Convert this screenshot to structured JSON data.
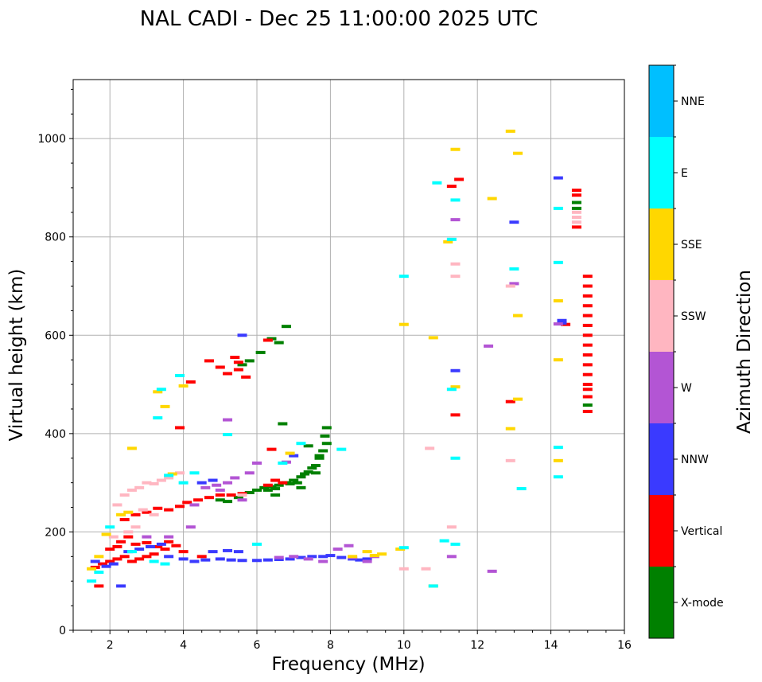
{
  "chart_data": {
    "type": "scatter",
    "title": "NAL CADI - Dec 25 11:00:00 2025 UTC",
    "xlabel": "Frequency (MHz)",
    "ylabel": "Virtual height (km)",
    "xlim": [
      1,
      16
    ],
    "ylim": [
      0,
      1120
    ],
    "xticks": [
      2,
      4,
      6,
      8,
      10,
      12,
      14,
      16
    ],
    "yticks": [
      0,
      200,
      400,
      600,
      800,
      1000
    ],
    "grid": true,
    "colorbar": {
      "label": "Azimuth Direction",
      "categories": [
        "X-mode",
        "Vertical",
        "NNW",
        "W",
        "SSW",
        "SSE",
        "E",
        "NNE"
      ],
      "colors": [
        "#008000",
        "#ff0000",
        "#3a3aff",
        "#b355d4",
        "#ffb6c1",
        "#ffd700",
        "#00ffff",
        "#00bfff"
      ]
    },
    "series": [
      {
        "name": "X-mode",
        "points": [
          [
            5.2,
            262
          ],
          [
            5.5,
            270
          ],
          [
            5.8,
            280
          ],
          [
            6.0,
            285
          ],
          [
            6.2,
            290
          ],
          [
            6.4,
            292
          ],
          [
            6.6,
            295
          ],
          [
            6.8,
            300
          ],
          [
            7.0,
            305
          ],
          [
            7.2,
            312
          ],
          [
            7.4,
            322
          ],
          [
            7.6,
            335
          ],
          [
            7.7,
            350
          ],
          [
            7.8,
            365
          ],
          [
            7.9,
            380
          ],
          [
            7.85,
            395
          ],
          [
            7.9,
            412
          ],
          [
            7.5,
            330
          ],
          [
            7.3,
            318
          ],
          [
            6.9,
            298
          ],
          [
            6.5,
            288
          ],
          [
            6.3,
            285
          ],
          [
            6.5,
            275
          ],
          [
            7.2,
            290
          ],
          [
            7.6,
            320
          ],
          [
            6.7,
            420
          ],
          [
            6.8,
            618
          ],
          [
            6.6,
            585
          ],
          [
            6.4,
            593
          ],
          [
            6.1,
            565
          ],
          [
            5.8,
            548
          ],
          [
            5.6,
            540
          ],
          [
            5.0,
            265
          ],
          [
            7.4,
            375
          ],
          [
            7.7,
            355
          ],
          [
            7.1,
            300
          ],
          [
            15.0,
            458
          ],
          [
            14.7,
            870
          ],
          [
            14.7,
            858
          ]
        ]
      },
      {
        "name": "Vertical",
        "points": [
          [
            1.6,
            128
          ],
          [
            1.8,
            135
          ],
          [
            2.0,
            140
          ],
          [
            2.2,
            145
          ],
          [
            2.4,
            150
          ],
          [
            2.6,
            140
          ],
          [
            2.8,
            145
          ],
          [
            3.0,
            150
          ],
          [
            3.2,
            155
          ],
          [
            2.3,
            180
          ],
          [
            2.5,
            190
          ],
          [
            2.7,
            175
          ],
          [
            3.0,
            178
          ],
          [
            3.3,
            170
          ],
          [
            3.5,
            165
          ],
          [
            3.8,
            172
          ],
          [
            4.0,
            160
          ],
          [
            4.5,
            150
          ],
          [
            2.4,
            225
          ],
          [
            2.7,
            235
          ],
          [
            3.0,
            240
          ],
          [
            3.3,
            248
          ],
          [
            3.6,
            245
          ],
          [
            3.9,
            252
          ],
          [
            4.1,
            260
          ],
          [
            4.4,
            265
          ],
          [
            4.7,
            270
          ],
          [
            5.0,
            275
          ],
          [
            5.3,
            275
          ],
          [
            5.6,
            278
          ],
          [
            6.3,
            295
          ],
          [
            6.5,
            305
          ],
          [
            6.7,
            300
          ],
          [
            3.9,
            412
          ],
          [
            4.2,
            505
          ],
          [
            4.7,
            548
          ],
          [
            5.0,
            535
          ],
          [
            5.2,
            522
          ],
          [
            5.4,
            555
          ],
          [
            5.5,
            545
          ],
          [
            5.5,
            530
          ],
          [
            5.7,
            515
          ],
          [
            6.3,
            590
          ],
          [
            6.4,
            368
          ],
          [
            2.0,
            165
          ],
          [
            2.2,
            170
          ],
          [
            3.6,
            180
          ],
          [
            1.7,
            90
          ],
          [
            11.4,
            438
          ],
          [
            11.3,
            903
          ],
          [
            11.5,
            917
          ],
          [
            12.9,
            465
          ],
          [
            14.4,
            622
          ],
          [
            14.7,
            895
          ],
          [
            14.7,
            885
          ],
          [
            14.7,
            820
          ],
          [
            15.0,
            445
          ],
          [
            15.0,
            475
          ],
          [
            15.0,
            720
          ],
          [
            15.0,
            700
          ],
          [
            15.0,
            680
          ],
          [
            15.0,
            660
          ],
          [
            15.0,
            640
          ],
          [
            15.0,
            620
          ],
          [
            15.0,
            600
          ],
          [
            15.0,
            580
          ],
          [
            15.0,
            560
          ],
          [
            15.0,
            540
          ],
          [
            15.0,
            520
          ],
          [
            15.0,
            500
          ],
          [
            15.0,
            490
          ]
        ]
      },
      {
        "name": "NNW",
        "points": [
          [
            1.6,
            140
          ],
          [
            1.9,
            130
          ],
          [
            2.1,
            135
          ],
          [
            2.5,
            160
          ],
          [
            2.8,
            165
          ],
          [
            3.1,
            170
          ],
          [
            3.4,
            175
          ],
          [
            3.6,
            150
          ],
          [
            4.0,
            145
          ],
          [
            4.3,
            140
          ],
          [
            4.6,
            143
          ],
          [
            5.0,
            145
          ],
          [
            5.3,
            143
          ],
          [
            5.6,
            142
          ],
          [
            6.0,
            142
          ],
          [
            6.3,
            143
          ],
          [
            6.6,
            144
          ],
          [
            6.9,
            145
          ],
          [
            7.2,
            148
          ],
          [
            7.5,
            150
          ],
          [
            7.8,
            150
          ],
          [
            8.0,
            152
          ],
          [
            8.3,
            148
          ],
          [
            8.6,
            145
          ],
          [
            8.8,
            143
          ],
          [
            9.0,
            145
          ],
          [
            4.8,
            160
          ],
          [
            5.2,
            162
          ],
          [
            5.5,
            160
          ],
          [
            2.3,
            90
          ],
          [
            5.6,
            600
          ],
          [
            11.4,
            528
          ],
          [
            13.0,
            830
          ],
          [
            14.2,
            920
          ],
          [
            14.3,
            630
          ],
          [
            14.3,
            625
          ],
          [
            7.0,
            355
          ],
          [
            4.5,
            300
          ],
          [
            4.8,
            305
          ]
        ]
      },
      {
        "name": "W",
        "points": [
          [
            3.0,
            190
          ],
          [
            3.6,
            190
          ],
          [
            4.3,
            255
          ],
          [
            4.6,
            290
          ],
          [
            4.9,
            295
          ],
          [
            5.2,
            300
          ],
          [
            5.4,
            310
          ],
          [
            5.6,
            265
          ],
          [
            5.8,
            320
          ],
          [
            6.6,
            148
          ],
          [
            7.0,
            150
          ],
          [
            7.4,
            145
          ],
          [
            7.8,
            140
          ],
          [
            8.2,
            165
          ],
          [
            8.5,
            172
          ],
          [
            8.6,
            148
          ],
          [
            9.0,
            140
          ],
          [
            9.2,
            150
          ],
          [
            5.0,
            285
          ],
          [
            5.2,
            428
          ],
          [
            6.0,
            340
          ],
          [
            11.3,
            150
          ],
          [
            11.4,
            835
          ],
          [
            12.3,
            578
          ],
          [
            12.4,
            120
          ],
          [
            13.0,
            705
          ],
          [
            14.2,
            623
          ],
          [
            6.8,
            342
          ],
          [
            4.2,
            210
          ]
        ]
      },
      {
        "name": "SSW",
        "points": [
          [
            2.2,
            255
          ],
          [
            2.4,
            275
          ],
          [
            2.6,
            285
          ],
          [
            2.8,
            290
          ],
          [
            3.0,
            300
          ],
          [
            3.2,
            298
          ],
          [
            3.4,
            305
          ],
          [
            3.6,
            310
          ],
          [
            2.9,
            245
          ],
          [
            3.2,
            235
          ],
          [
            2.5,
            200
          ],
          [
            2.7,
            210
          ],
          [
            2.1,
            190
          ],
          [
            3.9,
            320
          ],
          [
            10.0,
            125
          ],
          [
            10.6,
            125
          ],
          [
            11.3,
            210
          ],
          [
            11.4,
            745
          ],
          [
            11.4,
            720
          ],
          [
            12.9,
            345
          ],
          [
            12.9,
            700
          ],
          [
            14.7,
            840
          ],
          [
            14.7,
            830
          ],
          [
            14.7,
            850
          ],
          [
            5.6,
            275
          ],
          [
            10.7,
            370
          ]
        ]
      },
      {
        "name": "SSE",
        "points": [
          [
            1.5,
            125
          ],
          [
            1.7,
            150
          ],
          [
            1.9,
            195
          ],
          [
            2.3,
            235
          ],
          [
            2.5,
            240
          ],
          [
            2.6,
            370
          ],
          [
            3.3,
            485
          ],
          [
            3.5,
            455
          ],
          [
            3.7,
            318
          ],
          [
            4.0,
            497
          ],
          [
            6.9,
            360
          ],
          [
            9.0,
            160
          ],
          [
            9.4,
            155
          ],
          [
            9.9,
            165
          ],
          [
            10.0,
            622
          ],
          [
            10.8,
            595
          ],
          [
            10.8,
            90
          ],
          [
            11.2,
            790
          ],
          [
            11.4,
            495
          ],
          [
            11.4,
            978
          ],
          [
            12.4,
            878
          ],
          [
            12.9,
            410
          ],
          [
            12.9,
            1015
          ],
          [
            13.1,
            970
          ],
          [
            13.1,
            640
          ],
          [
            13.1,
            470
          ],
          [
            14.2,
            550
          ],
          [
            14.2,
            670
          ],
          [
            14.2,
            345
          ],
          [
            9.2,
            152
          ],
          [
            8.6,
            150
          ]
        ]
      },
      {
        "name": "E",
        "points": [
          [
            1.5,
            100
          ],
          [
            1.7,
            118
          ],
          [
            2.0,
            210
          ],
          [
            2.6,
            160
          ],
          [
            3.2,
            140
          ],
          [
            3.5,
            135
          ],
          [
            3.3,
            432
          ],
          [
            3.4,
            490
          ],
          [
            3.6,
            315
          ],
          [
            3.9,
            518
          ],
          [
            4.0,
            300
          ],
          [
            4.3,
            320
          ],
          [
            5.2,
            398
          ],
          [
            6.7,
            340
          ],
          [
            7.2,
            380
          ],
          [
            6.0,
            175
          ],
          [
            10.0,
            720
          ],
          [
            10.0,
            168
          ],
          [
            10.8,
            90
          ],
          [
            10.9,
            910
          ],
          [
            11.1,
            182
          ],
          [
            11.3,
            795
          ],
          [
            11.4,
            875
          ],
          [
            11.4,
            350
          ],
          [
            11.4,
            175
          ],
          [
            11.3,
            490
          ],
          [
            13.0,
            735
          ],
          [
            13.2,
            288
          ],
          [
            14.2,
            858
          ],
          [
            14.2,
            748
          ],
          [
            14.2,
            372
          ],
          [
            14.2,
            312
          ],
          [
            8.3,
            368
          ]
        ]
      }
    ]
  }
}
